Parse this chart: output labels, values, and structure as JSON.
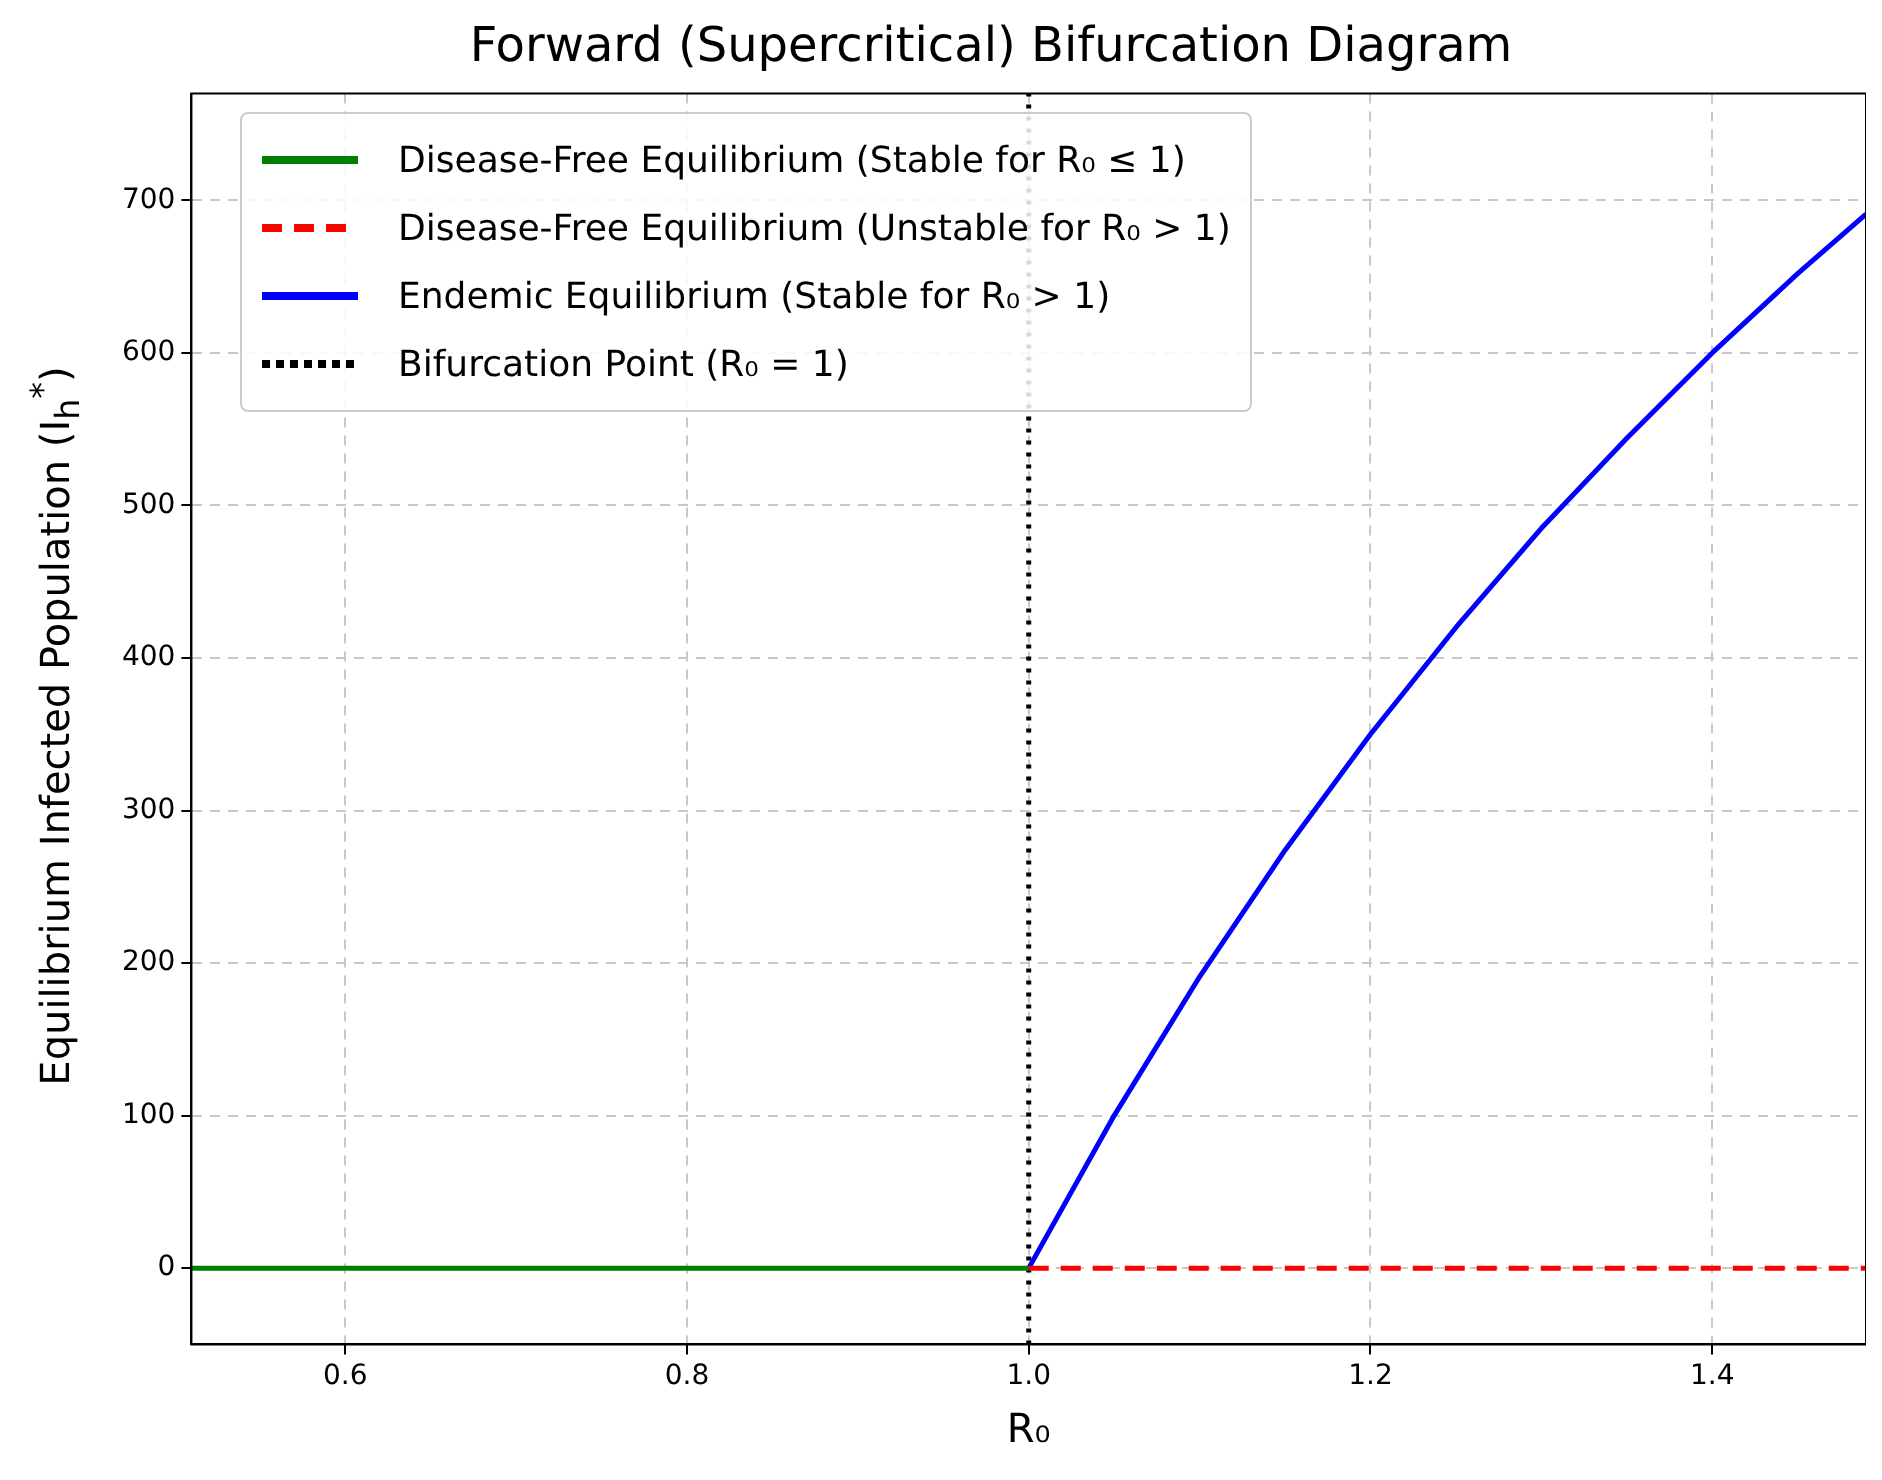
{
  "chart_data": {
    "type": "line",
    "title": "Forward (Supercritical) Bifurcation Diagram",
    "xlabel": "R₀",
    "ylabel": "Equilibrium Infected Population (I$_{h}$$^{*}$)",
    "series": [
      {
        "name": "Disease-Free Equilibrium (Stable for R₀ ≤ 1)",
        "color": "#008000",
        "x": [
          0.51,
          1.0
        ],
        "values": [
          0,
          0
        ]
      },
      {
        "name": "Disease-Free Equilibrium (Unstable for R₀ > 1)",
        "color": "#ff0000",
        "line_style": "dashed",
        "x": [
          1.0,
          1.49
        ],
        "values": [
          0,
          0
        ]
      },
      {
        "name": "Endemic Equilibrium (Stable for R₀ > 1)",
        "color": "#0000ff",
        "x": [
          1.0,
          1.05,
          1.1,
          1.15,
          1.2,
          1.25,
          1.3,
          1.35,
          1.4,
          1.45,
          1.49
        ],
        "values": [
          0,
          100,
          191,
          274,
          350,
          420,
          485,
          544,
          600,
          652,
          691
        ]
      },
      {
        "name": "Bifurcation Point (R₀ = 1)",
        "color": "#000000",
        "line_style": "dotted",
        "x": [
          1.0,
          1.0
        ],
        "values": [
          -50,
          770
        ]
      }
    ],
    "xlim": [
      0.51,
      1.49
    ],
    "ylim": [
      -50,
      770
    ],
    "xticks": [
      0.6,
      0.8,
      {
        "value": 1.0,
        "label": "1.0"
      },
      1.2,
      1.4
    ],
    "yticks": [
      0,
      100,
      200,
      300,
      400,
      500,
      600,
      700
    ],
    "grid": true,
    "legend": "top left",
    "marker": "none",
    "line_style": "solid"
  }
}
